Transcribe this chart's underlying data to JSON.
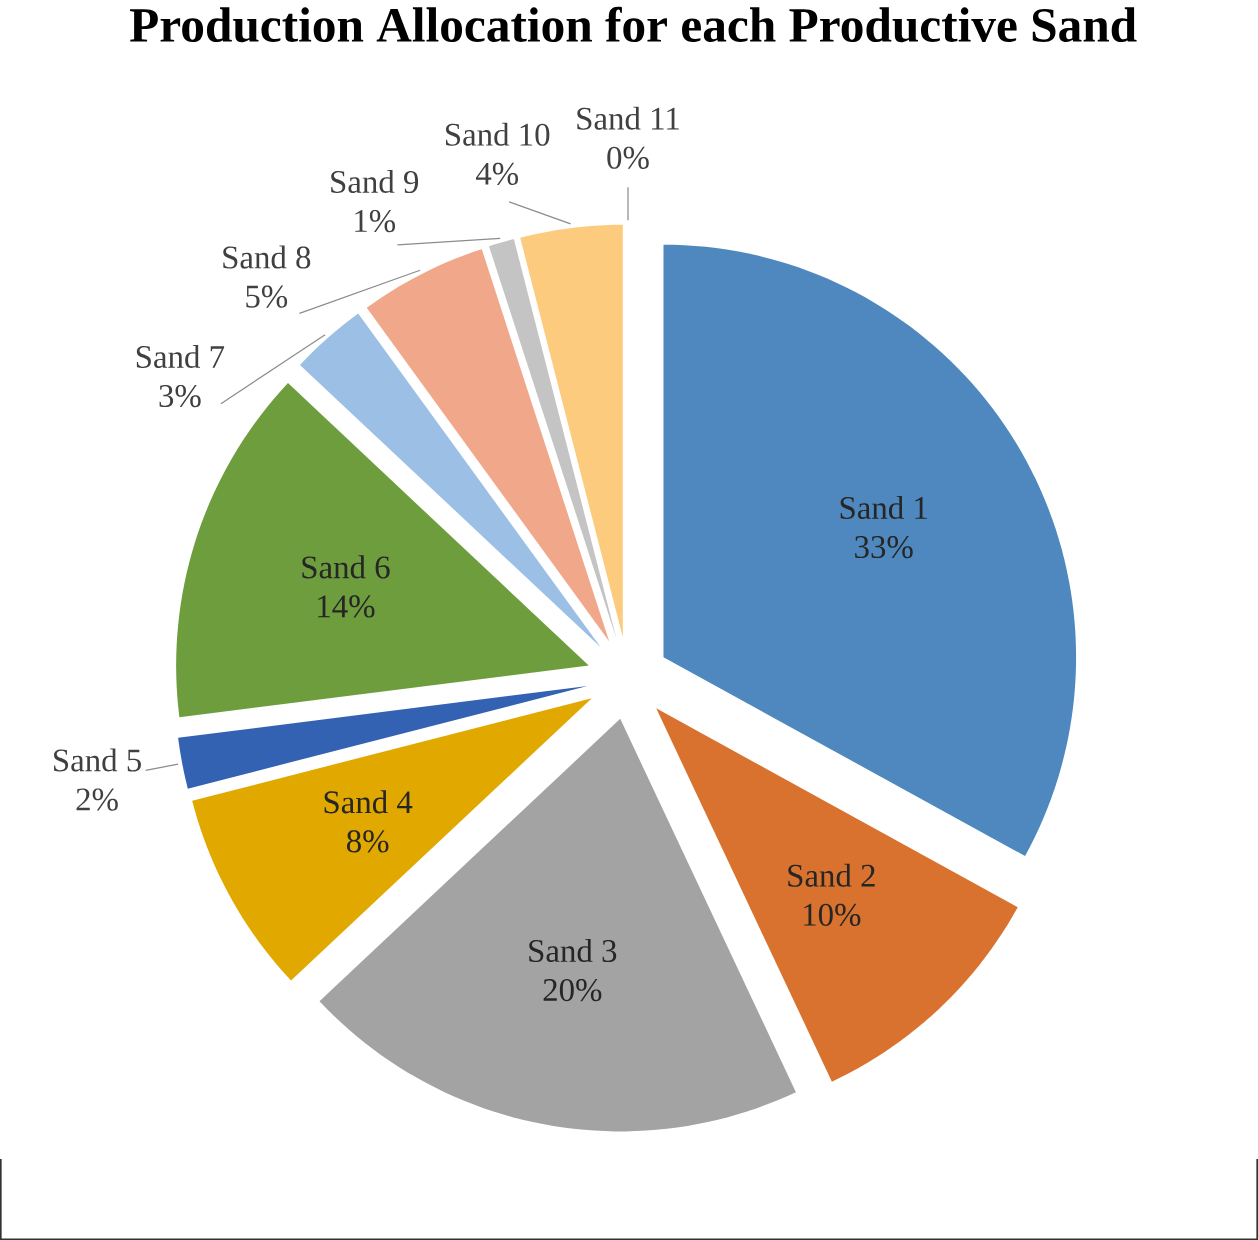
{
  "chart_data": {
    "type": "pie",
    "title": "Production Allocation for each Productive Sand",
    "categories": [
      "Sand 1",
      "Sand 2",
      "Sand 3",
      "Sand 4",
      "Sand 5",
      "Sand 6",
      "Sand 7",
      "Sand 8",
      "Sand 9",
      "Sand 10",
      "Sand 11"
    ],
    "values": [
      33,
      10,
      20,
      8,
      2,
      14,
      3,
      5,
      1,
      4,
      0
    ],
    "value_labels": [
      "33%",
      "10%",
      "20%",
      "8%",
      "2%",
      "14%",
      "3%",
      "5%",
      "1%",
      "4%",
      "0%"
    ],
    "colors": [
      "#4f88be",
      "#d9722e",
      "#a3a3a3",
      "#e1a800",
      "#3362b2",
      "#6e9d3e",
      "#9cbfe6",
      "#f0a78a",
      "#c4c4c4",
      "#fdcb7e",
      "#7f7f7f"
    ]
  }
}
